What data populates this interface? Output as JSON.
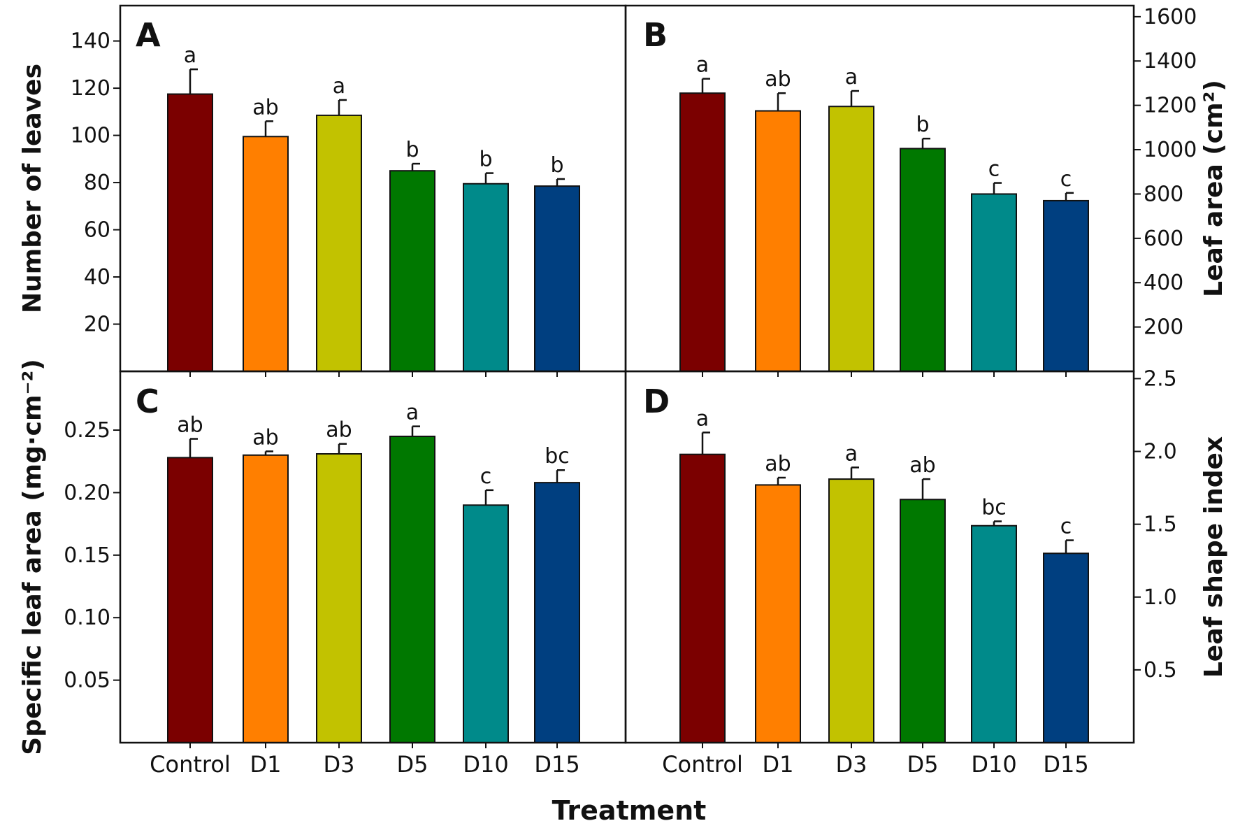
{
  "figure": {
    "xlabel": "Treatment"
  },
  "chart_data": [
    {
      "id": "A",
      "type": "bar",
      "title": "",
      "panel_label": "A",
      "ylabel": "Number of leaves",
      "y_axis_side": "left",
      "ylim": [
        0,
        155
      ],
      "yticks": [
        20,
        40,
        60,
        80,
        100,
        120,
        140
      ],
      "tick_decimals": 0,
      "categories": [
        "Control",
        "D1",
        "D3",
        "D5",
        "D10",
        "D15"
      ],
      "show_categories": false,
      "values": [
        117.5,
        99.5,
        108.5,
        85,
        79.5,
        78.5
      ],
      "errors": [
        10.5,
        6.5,
        6.5,
        3,
        4.5,
        3
      ],
      "significance": [
        "a",
        "ab",
        "a",
        "b",
        "b",
        "b"
      ],
      "colors": [
        "#7b0000",
        "#ff7f00",
        "#c2c200",
        "#007800",
        "#008a8a",
        "#003f80"
      ],
      "grid": false
    },
    {
      "id": "B",
      "type": "bar",
      "title": "",
      "panel_label": "B",
      "ylabel": "Leaf area (cm²)",
      "y_axis_side": "right",
      "ylim": [
        0,
        1650
      ],
      "yticks": [
        200,
        400,
        600,
        800,
        1000,
        1200,
        1400,
        1600
      ],
      "tick_decimals": 0,
      "categories": [
        "Control",
        "D1",
        "D3",
        "D5",
        "D10",
        "D15"
      ],
      "show_categories": false,
      "values": [
        1255,
        1175,
        1195,
        1005,
        800,
        770
      ],
      "errors": [
        65,
        80,
        70,
        45,
        50,
        35
      ],
      "significance": [
        "a",
        "ab",
        "a",
        "b",
        "c",
        "c"
      ],
      "colors": [
        "#7b0000",
        "#ff7f00",
        "#c2c200",
        "#007800",
        "#008a8a",
        "#003f80"
      ],
      "grid": false
    },
    {
      "id": "C",
      "type": "bar",
      "title": "",
      "panel_label": "C",
      "ylabel": "Specific leaf area (mg·cm⁻²)",
      "y_axis_side": "left",
      "ylim": [
        0,
        0.297
      ],
      "yticks": [
        0.05,
        0.1,
        0.15,
        0.2,
        0.25
      ],
      "tick_decimals": 2,
      "categories": [
        "Control",
        "D1",
        "D3",
        "D5",
        "D10",
        "D15"
      ],
      "show_categories": true,
      "values": [
        0.228,
        0.23,
        0.231,
        0.245,
        0.19,
        0.208
      ],
      "errors": [
        0.015,
        0.003,
        0.008,
        0.008,
        0.012,
        0.01
      ],
      "significance": [
        "ab",
        "ab",
        "ab",
        "a",
        "c",
        "bc"
      ],
      "colors": [
        "#7b0000",
        "#ff7f00",
        "#c2c200",
        "#007800",
        "#008a8a",
        "#003f80"
      ],
      "grid": false
    },
    {
      "id": "D",
      "type": "bar",
      "title": "",
      "panel_label": "D",
      "ylabel": "Leaf shape index",
      "y_axis_side": "right",
      "ylim": [
        0,
        2.55
      ],
      "yticks": [
        0.5,
        1.0,
        1.5,
        2.0,
        2.5
      ],
      "tick_decimals": 1,
      "categories": [
        "Control",
        "D1",
        "D3",
        "D5",
        "D10",
        "D15"
      ],
      "show_categories": true,
      "values": [
        1.98,
        1.77,
        1.81,
        1.67,
        1.49,
        1.3
      ],
      "errors": [
        0.15,
        0.05,
        0.08,
        0.14,
        0.03,
        0.09
      ],
      "significance": [
        "a",
        "ab",
        "a",
        "ab",
        "bc",
        "c"
      ],
      "colors": [
        "#7b0000",
        "#ff7f00",
        "#c2c200",
        "#007800",
        "#008a8a",
        "#003f80"
      ],
      "grid": false
    }
  ]
}
